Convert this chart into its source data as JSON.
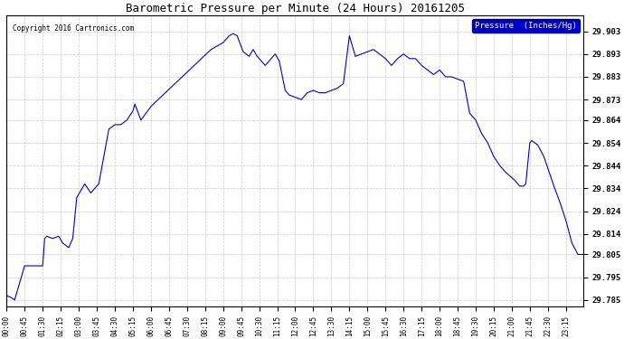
{
  "title": "Barometric Pressure per Minute (24 Hours) 20161205",
  "copyright": "Copyright 2016 Cartronics.com",
  "legend_label": "Pressure  (Inches/Hg)",
  "line_color": "#0000cc",
  "background_color": "#ffffff",
  "grid_color": "#bbbbbb",
  "legend_bg": "#0000cc",
  "legend_fg": "#ffffff",
  "yticks": [
    29.785,
    29.795,
    29.805,
    29.814,
    29.824,
    29.834,
    29.844,
    29.854,
    29.864,
    29.873,
    29.883,
    29.893,
    29.903
  ],
  "ylim": [
    29.782,
    29.91
  ],
  "xtick_labels": [
    "00:00",
    "00:45",
    "01:30",
    "02:15",
    "03:00",
    "03:45",
    "04:30",
    "05:15",
    "06:00",
    "06:45",
    "07:30",
    "08:15",
    "09:00",
    "09:45",
    "10:30",
    "11:15",
    "12:00",
    "12:45",
    "13:30",
    "14:15",
    "15:00",
    "15:45",
    "16:30",
    "17:15",
    "18:00",
    "18:45",
    "19:30",
    "20:15",
    "21:00",
    "21:45",
    "22:30",
    "23:15"
  ],
  "key_minutes": [
    0,
    12,
    20,
    45,
    75,
    90,
    95,
    100,
    115,
    130,
    140,
    155,
    165,
    175,
    195,
    210,
    230,
    255,
    270,
    285,
    300,
    315,
    320,
    335,
    360,
    390,
    420,
    450,
    480,
    510,
    540,
    555,
    565,
    575,
    590,
    605,
    615,
    625,
    635,
    645,
    660,
    670,
    680,
    695,
    705,
    720,
    735,
    750,
    765,
    780,
    795,
    810,
    825,
    840,
    855,
    870,
    885,
    900,
    915,
    930,
    945,
    960,
    975,
    990,
    1005,
    1020,
    1035,
    1050,
    1065,
    1080,
    1095,
    1110,
    1125,
    1140,
    1155,
    1170,
    1185,
    1200,
    1215,
    1230,
    1245,
    1265,
    1280,
    1290,
    1295,
    1305,
    1310,
    1325,
    1340,
    1365,
    1380,
    1395,
    1410,
    1425,
    1439
  ],
  "key_pressures": [
    29.787,
    29.786,
    29.785,
    29.8,
    29.8,
    29.8,
    29.812,
    29.813,
    29.812,
    29.813,
    29.81,
    29.808,
    29.812,
    29.83,
    29.836,
    29.832,
    29.836,
    29.86,
    29.862,
    29.862,
    29.864,
    29.868,
    29.871,
    29.864,
    29.87,
    29.875,
    29.88,
    29.885,
    29.89,
    29.895,
    29.898,
    29.901,
    29.902,
    29.901,
    29.894,
    29.892,
    29.895,
    29.892,
    29.89,
    29.888,
    29.891,
    29.893,
    29.89,
    29.877,
    29.875,
    29.874,
    29.873,
    29.876,
    29.877,
    29.876,
    29.876,
    29.877,
    29.878,
    29.88,
    29.901,
    29.892,
    29.893,
    29.894,
    29.895,
    29.893,
    29.891,
    29.888,
    29.891,
    29.893,
    29.891,
    29.891,
    29.888,
    29.886,
    29.884,
    29.886,
    29.883,
    29.883,
    29.882,
    29.881,
    29.867,
    29.864,
    29.858,
    29.854,
    29.848,
    29.844,
    29.841,
    29.838,
    29.835,
    29.835,
    29.836,
    29.854,
    29.855,
    29.853,
    29.848,
    29.835,
    29.828,
    29.82,
    29.81,
    29.805,
    29.805
  ]
}
